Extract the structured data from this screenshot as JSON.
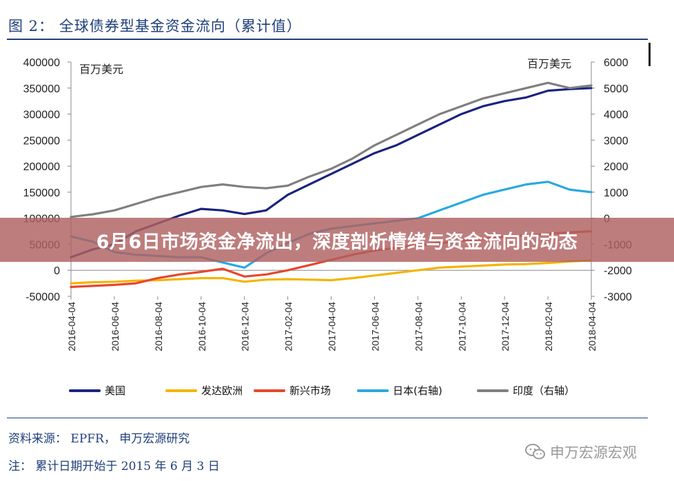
{
  "figure": {
    "title": "图 2：  全球债券型基金资金流向（累计值）",
    "source": "资料来源： EPFR， 申万宏源研究",
    "note": "注：  累计日期开始于 2015 年 6 月 3 日"
  },
  "banner": {
    "text": "6月6日市场资金净流出，深度剖析情绪与资金流向的动态"
  },
  "watermark": {
    "text": "申万宏源宏观",
    "icon": "wechat-icon"
  },
  "chart_data": {
    "type": "line",
    "x_tick_labels": [
      "2016-04-04",
      "2016-06-04",
      "2016-08-04",
      "2016-10-04",
      "2016-12-04",
      "2017-02-04",
      "2017-04-04",
      "2017-06-04",
      "2017-08-04",
      "2017-10-04",
      "2017-12-04",
      "2018-02-04",
      "2018-04-04"
    ],
    "x": [
      "2016-04",
      "2016-05",
      "2016-06",
      "2016-07",
      "2016-08",
      "2016-09",
      "2016-10",
      "2016-11",
      "2016-12",
      "2017-01",
      "2017-02",
      "2017-03",
      "2017-04",
      "2017-05",
      "2017-06",
      "2017-07",
      "2017-08",
      "2017-09",
      "2017-10",
      "2017-11",
      "2017-12",
      "2018-01",
      "2018-02",
      "2018-03",
      "2018-04"
    ],
    "y_left": {
      "unit": "百万美元",
      "ylim": [
        -50000,
        400000
      ],
      "ticks": [
        -50000,
        0,
        50000,
        100000,
        150000,
        200000,
        250000,
        300000,
        350000,
        400000
      ]
    },
    "y_right": {
      "unit": "百万美元",
      "ylim": [
        -3000,
        6000
      ],
      "ticks": [
        -3000,
        -2000,
        -1000,
        0,
        1000,
        2000,
        3000,
        4000,
        5000,
        6000
      ]
    },
    "series": [
      {
        "name": "美国",
        "axis": "left",
        "color": "#1a237e",
        "values": [
          25000,
          40000,
          50000,
          75000,
          90000,
          105000,
          118000,
          115000,
          108000,
          115000,
          145000,
          165000,
          185000,
          205000,
          225000,
          240000,
          260000,
          280000,
          300000,
          315000,
          325000,
          332000,
          345000,
          348000,
          350000
        ]
      },
      {
        "name": "发达欧洲",
        "axis": "left",
        "color": "#f4b400",
        "values": [
          -25000,
          -23000,
          -22000,
          -20000,
          -19000,
          -17000,
          -15000,
          -15000,
          -22000,
          -18000,
          -17000,
          -18000,
          -19000,
          -15000,
          -10000,
          -5000,
          0,
          5000,
          7000,
          9000,
          11000,
          12000,
          14000,
          17000,
          19000
        ]
      },
      {
        "name": "新兴市场",
        "axis": "left",
        "color": "#e8462b",
        "values": [
          -32000,
          -30000,
          -28000,
          -25000,
          -15000,
          -8000,
          -3000,
          3000,
          -12000,
          -8000,
          0,
          10000,
          20000,
          30000,
          38000,
          43000,
          48000,
          52000,
          57000,
          60000,
          65000,
          67000,
          70000,
          73000,
          75000
        ]
      },
      {
        "name": "日本(右轴)",
        "axis": "right",
        "color": "#29a9e0",
        "values": [
          -700,
          -900,
          -1300,
          -1400,
          -1450,
          -1500,
          -1500,
          -1700,
          -1900,
          -1350,
          -950,
          -600,
          -400,
          -300,
          -200,
          -100,
          0,
          300,
          600,
          900,
          1100,
          1300,
          1400,
          1100,
          1000
        ]
      },
      {
        "name": "印度（右轴）",
        "axis": "right",
        "color": "#7f7f7f",
        "values": [
          50,
          150,
          300,
          550,
          800,
          1000,
          1200,
          1300,
          1200,
          1150,
          1250,
          1600,
          1900,
          2300,
          2800,
          3200,
          3600,
          4000,
          4300,
          4600,
          4800,
          5000,
          5200,
          5000,
          5100
        ]
      }
    ]
  }
}
